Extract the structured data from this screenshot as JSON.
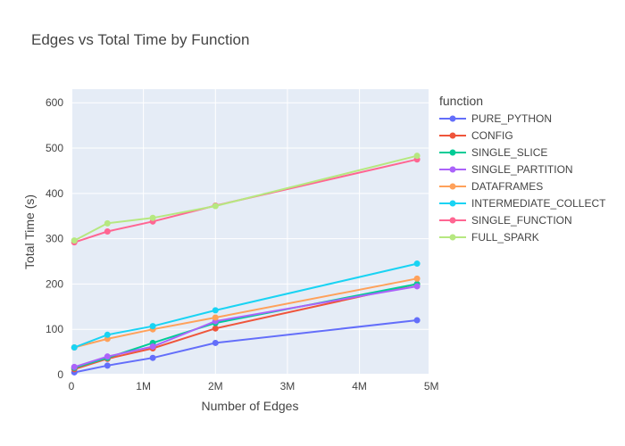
{
  "chart_data": {
    "type": "line",
    "title": "Edges vs Total Time by Function",
    "xlabel": "Number of Edges",
    "ylabel": "Total Time (s)",
    "xlim": [
      0,
      4960000
    ],
    "ylim": [
      0,
      630
    ],
    "x_ticks": [
      0,
      1000000,
      2000000,
      3000000,
      4000000,
      5000000
    ],
    "x_tick_labels": [
      "0",
      "1M",
      "2M",
      "3M",
      "4M",
      "5M"
    ],
    "y_ticks": [
      0,
      100,
      200,
      300,
      400,
      500,
      600
    ],
    "y_tick_labels": [
      "0",
      "100",
      "200",
      "300",
      "400",
      "500",
      "600"
    ],
    "grid": true,
    "legend_title": "function",
    "legend_position": "right",
    "x": [
      40000,
      500000,
      1130000,
      2000000,
      4800000
    ],
    "series": [
      {
        "name": "PURE_PYTHON",
        "color": "#636efa",
        "values": [
          5,
          20,
          37,
          70,
          120
        ]
      },
      {
        "name": "CONFIG",
        "color": "#EF553B",
        "values": [
          12,
          35,
          58,
          102,
          200
        ]
      },
      {
        "name": "SINGLE_SLICE",
        "color": "#00cc96",
        "values": [
          15,
          37,
          70,
          114,
          200
        ]
      },
      {
        "name": "SINGLE_PARTITION",
        "color": "#ab63fa",
        "values": [
          17,
          40,
          62,
          118,
          195
        ]
      },
      {
        "name": "DATAFRAMES",
        "color": "#FFA15A",
        "values": [
          60,
          79,
          100,
          126,
          212
        ]
      },
      {
        "name": "INTERMEDIATE_COLLECT",
        "color": "#19d3f3",
        "values": [
          60,
          88,
          107,
          142,
          245
        ]
      },
      {
        "name": "SINGLE_FUNCTION",
        "color": "#FF6692",
        "values": [
          292,
          316,
          338,
          373,
          475
        ]
      },
      {
        "name": "FULL_SPARK",
        "color": "#B6E880",
        "values": [
          296,
          334,
          346,
          372,
          483
        ]
      }
    ]
  }
}
